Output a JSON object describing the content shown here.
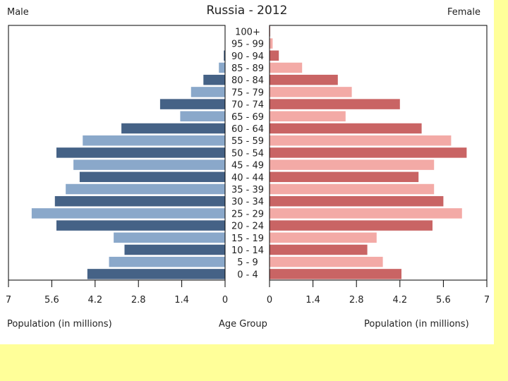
{
  "chart_data": {
    "type": "bar",
    "title": "Russia - 2012",
    "subtype": "population-pyramid",
    "left_label": "Male",
    "right_label": "Female",
    "categories": [
      "0 - 4",
      "5 - 9",
      "10 - 14",
      "15 - 19",
      "20 - 24",
      "25 - 29",
      "30 - 34",
      "35 - 39",
      "40 - 44",
      "45 - 49",
      "50 - 54",
      "55 - 59",
      "60 - 64",
      "65 - 69",
      "70 - 74",
      "75 - 79",
      "80 - 84",
      "85 - 89",
      "90 - 94",
      "95 - 99",
      "100+"
    ],
    "series": [
      {
        "name": "Male",
        "values": [
          4.45,
          3.75,
          3.25,
          3.6,
          5.45,
          6.25,
          5.5,
          5.15,
          4.7,
          4.9,
          5.45,
          4.6,
          3.35,
          1.45,
          2.1,
          1.1,
          0.7,
          0.2,
          0.04,
          0.01,
          0.005
        ]
      },
      {
        "name": "Female",
        "values": [
          4.25,
          3.65,
          3.15,
          3.45,
          5.25,
          6.2,
          5.6,
          5.3,
          4.8,
          5.3,
          6.35,
          5.85,
          4.9,
          2.45,
          4.2,
          2.65,
          2.2,
          1.05,
          0.3,
          0.1,
          0.02
        ]
      }
    ],
    "xlim": [
      0,
      7
    ],
    "x_ticks": [
      "7",
      "5.6",
      "4.2",
      "2.8",
      "1.4",
      "0"
    ],
    "x_ticks_right": [
      "0",
      "1.4",
      "2.8",
      "4.2",
      "5.6",
      "7"
    ],
    "xlabel_left": "Population (in millions)",
    "xlabel_center": "Age Group",
    "xlabel_right": "Population (in millions)",
    "colors": {
      "male_dark": "#456286",
      "male_light": "#8aa8ca",
      "female_dark": "#c96464",
      "female_light": "#f3aaa6"
    }
  }
}
